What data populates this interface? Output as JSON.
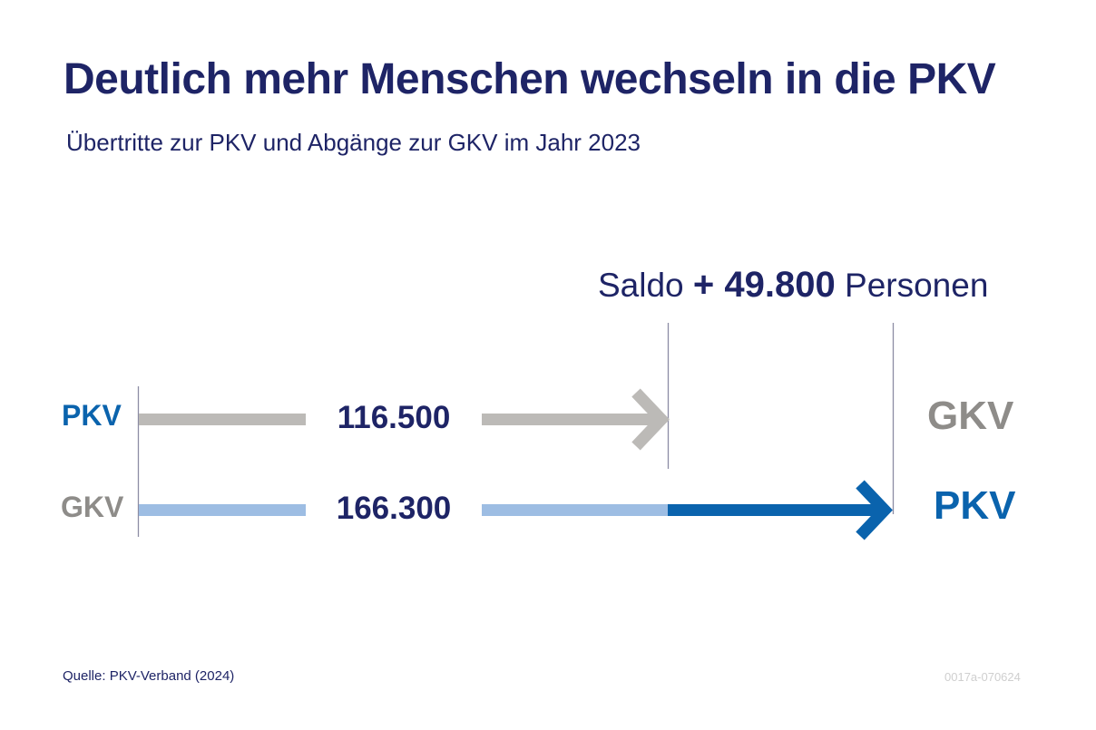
{
  "title": "Deutlich mehr Menschen wechseln in die PKV",
  "subtitle": "Übertritte zur PKV und Abgänge zur GKV im Jahr 2023",
  "saldo": {
    "prefix": "Saldo",
    "value": "+ 49.800",
    "suffix": "Personen"
  },
  "source": "Quelle: PKV-Verband (2024)",
  "code": "0017a-070624",
  "colors": {
    "navy": "#1e2466",
    "blue": "#0a63ad",
    "light_blue": "#9dbde3",
    "gray": "#bcbab7",
    "label_gray": "#8e8c89"
  },
  "chart_data": {
    "type": "bar",
    "title": "Deutlich mehr Menschen wechseln in die PKV",
    "subtitle": "Übertritte zur PKV und Abgänge zur GKV im Jahr 2023",
    "unit": "Personen",
    "flows": [
      {
        "from": "PKV",
        "to": "GKV",
        "value": 116500,
        "label": "116.500"
      },
      {
        "from": "GKV",
        "to": "PKV",
        "value": 166300,
        "label": "166.300"
      }
    ],
    "saldo": {
      "value": 49800,
      "label": "+ 49.800"
    },
    "source": "Quelle: PKV-Verband (2024)"
  }
}
